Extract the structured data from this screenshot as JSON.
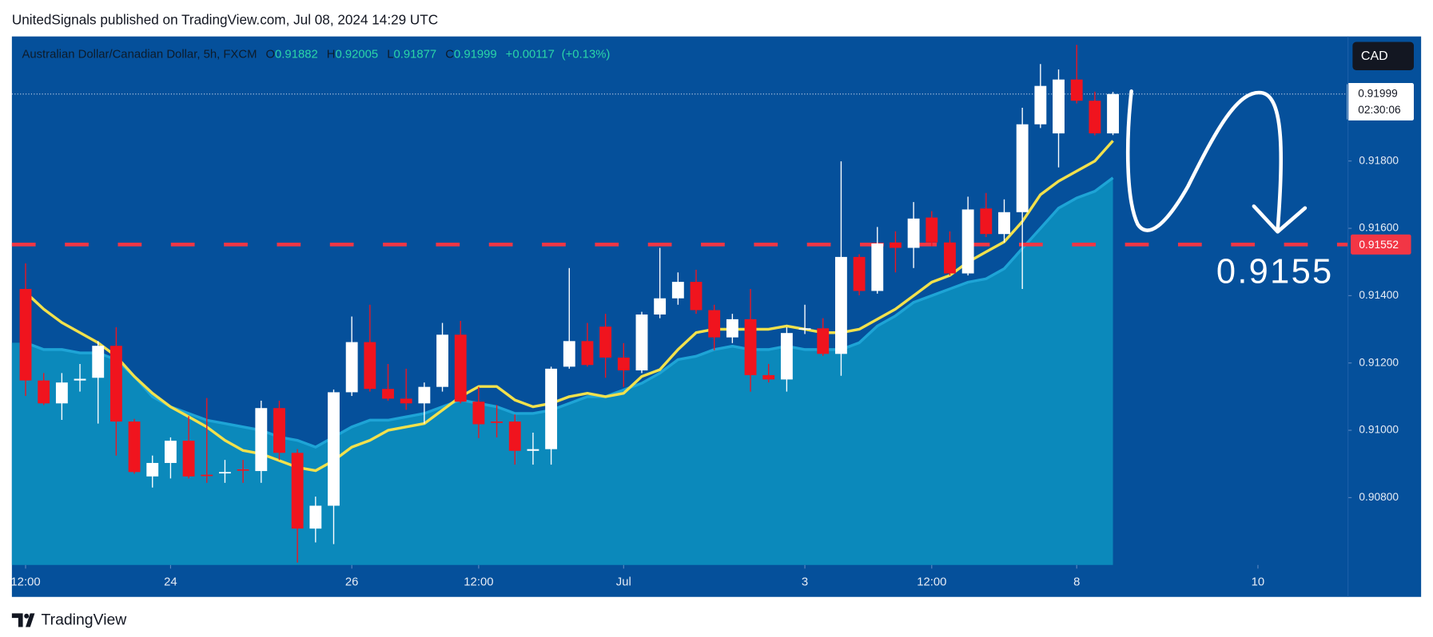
{
  "header": "UnitedSignals published on TradingView.com, Jul 08, 2024 14:29 UTC",
  "footer": "TradingView",
  "currency_button": "CAD",
  "chart_data": {
    "type": "candlestick",
    "title": "Australian Dollar/Canadian Dollar, 5h, FXCM",
    "legend_labels": {
      "open": "O",
      "high": "H",
      "low": "L",
      "close": "C"
    },
    "change": "+0.00117",
    "change_pct": "(+0.13%)",
    "countdown": "02:30:06",
    "annotation": "0.9155",
    "level": 0.91552,
    "level_color": "#f23645",
    "up_color": "#ffffff",
    "down_color": "#f0141e",
    "open": [
      0.9142,
      0.91148,
      0.9108,
      0.91148,
      0.91156,
      0.91251,
      0.91026,
      0.90863,
      0.90903,
      0.90969,
      0.90868,
      0.90874,
      0.90884,
      0.90879,
      0.91066,
      0.90933,
      0.90708,
      0.90776,
      0.91113,
      0.91262,
      0.91123,
      0.91094,
      0.9108,
      0.91129,
      0.91284,
      0.91085,
      0.91026,
      0.91026,
      0.90939,
      0.90944,
      0.91189,
      0.91265,
      0.91308,
      0.91216,
      0.91178,
      0.91344,
      0.91392,
      0.91441,
      0.91357,
      0.91276,
      0.9133,
      0.91164,
      0.91151,
      0.913,
      0.91303,
      0.91227,
      0.91515,
      0.91414,
      0.91558,
      0.91542,
      0.91632,
      0.91558,
      0.91466,
      0.91659,
      0.91583,
      0.91648,
      0.91909,
      0.91882,
      0.92042,
      0.91979,
      0.91882
    ],
    "high": [
      0.91496,
      0.9117,
      0.9117,
      0.91197,
      0.91265,
      0.91306,
      0.91034,
      0.90925,
      0.90979,
      0.91042,
      0.91096,
      0.90912,
      0.90912,
      0.91088,
      0.91088,
      0.90944,
      0.90803,
      0.91121,
      0.91338,
      0.91373,
      0.91197,
      0.91183,
      0.91142,
      0.91319,
      0.91325,
      0.91129,
      0.91075,
      0.91047,
      0.90993,
      0.91189,
      0.91482,
      0.91319,
      0.91346,
      0.91259,
      0.91352,
      0.91542,
      0.91469,
      0.91477,
      0.91373,
      0.91346,
      0.9142,
      0.91197,
      0.91306,
      0.91373,
      0.91333,
      0.91799,
      0.91523,
      0.91604,
      0.91591,
      0.91678,
      0.91651,
      0.91591,
      0.91694,
      0.91705,
      0.91686,
      0.91958,
      0.92088,
      0.92072,
      0.92145,
      0.92006,
      0.92005
    ],
    "low": [
      0.91102,
      0.91075,
      0.91031,
      0.91115,
      0.9102,
      0.90925,
      0.90871,
      0.9083,
      0.90857,
      0.90857,
      0.90844,
      0.90844,
      0.90844,
      0.90844,
      0.90912,
      0.90607,
      0.90667,
      0.90662,
      0.91102,
      0.91115,
      0.91088,
      0.91061,
      0.9102,
      0.91115,
      0.9108,
      0.90977,
      0.90979,
      0.90898,
      0.90898,
      0.90898,
      0.91183,
      0.91189,
      0.91156,
      0.91129,
      0.9117,
      0.91333,
      0.91373,
      0.91346,
      0.91238,
      0.91259,
      0.91115,
      0.91142,
      0.91115,
      0.91286,
      0.91221,
      0.91162,
      0.91401,
      0.91406,
      0.91469,
      0.91482,
      0.91547,
      0.9146,
      0.9146,
      0.91574,
      0.91558,
      0.9142,
      0.91898,
      0.91781,
      0.91971,
      0.91876,
      0.91877
    ],
    "close": [
      0.91148,
      0.9108,
      0.91142,
      0.91153,
      0.91251,
      0.91026,
      0.90876,
      0.90903,
      0.90969,
      0.90863,
      0.90866,
      0.90876,
      0.90882,
      0.91066,
      0.90933,
      0.90708,
      0.90776,
      0.91113,
      0.91262,
      0.91123,
      0.91094,
      0.9108,
      0.91129,
      0.91284,
      0.91085,
      0.91018,
      0.91024,
      0.90939,
      0.90944,
      0.91183,
      0.91265,
      0.91194,
      0.91216,
      0.91178,
      0.91344,
      0.91392,
      0.91441,
      0.91357,
      0.91276,
      0.9133,
      0.91164,
      0.91151,
      0.91289,
      0.91303,
      0.91227,
      0.91515,
      0.91414,
      0.91555,
      0.91542,
      0.91629,
      0.91558,
      0.91466,
      0.91656,
      0.91583,
      0.91648,
      0.91909,
      0.92023,
      0.92042,
      0.91979,
      0.91882,
      0.91999
    ],
    "overlays": [
      {
        "color": "#0b89bb",
        "fill": true,
        "values": [
          0.9126,
          0.9124,
          0.9124,
          0.9123,
          0.9123,
          0.9121,
          0.9116,
          0.911,
          0.9107,
          0.9105,
          0.9103,
          0.9102,
          0.9101,
          0.91,
          0.9098,
          0.9097,
          0.9095,
          0.9098,
          0.9101,
          0.9103,
          0.9103,
          0.9104,
          0.9105,
          0.9107,
          0.9109,
          0.9108,
          0.9107,
          0.9105,
          0.9105,
          0.9106,
          0.9108,
          0.911,
          0.911,
          0.9112,
          0.9114,
          0.9117,
          0.9121,
          0.9122,
          0.9124,
          0.9125,
          0.9124,
          0.9124,
          0.9125,
          0.9124,
          0.9124,
          0.9124,
          0.9126,
          0.9131,
          0.9134,
          0.9138,
          0.914,
          0.9142,
          0.9144,
          0.9145,
          0.9148,
          0.9154,
          0.916,
          0.9166,
          0.9169,
          0.9171,
          0.9175
        ]
      },
      {
        "color": "#f2e14c",
        "fill": false,
        "values": [
          0.9141,
          0.9136,
          0.9132,
          0.9129,
          0.9126,
          0.9122,
          0.9116,
          0.9111,
          0.9107,
          0.9104,
          0.9101,
          0.9097,
          0.9094,
          0.9093,
          0.9091,
          0.9089,
          0.9088,
          0.9091,
          0.9095,
          0.9097,
          0.91,
          0.9101,
          0.9102,
          0.9106,
          0.911,
          0.9113,
          0.9113,
          0.9109,
          0.9107,
          0.9108,
          0.911,
          0.9111,
          0.911,
          0.9111,
          0.9116,
          0.9118,
          0.9124,
          0.9129,
          0.913,
          0.913,
          0.913,
          0.913,
          0.9131,
          0.913,
          0.9129,
          0.9129,
          0.913,
          0.9133,
          0.9136,
          0.914,
          0.9144,
          0.9146,
          0.915,
          0.9153,
          0.9156,
          0.9162,
          0.917,
          0.9174,
          0.9177,
          0.918,
          0.9186
        ]
      }
    ],
    "ylim": [
      0.906,
      0.9217
    ],
    "yticks": [
      {
        "value": 0.908,
        "label": "0.90800"
      },
      {
        "value": 0.91,
        "label": "0.91000"
      },
      {
        "value": 0.912,
        "label": "0.91200"
      },
      {
        "value": 0.914,
        "label": "0.91400"
      },
      {
        "value": 0.916,
        "label": "0.91600"
      },
      {
        "value": 0.918,
        "label": "0.91800"
      }
    ],
    "xticks": [
      {
        "value": 0,
        "label": "12:00"
      },
      {
        "value": 8,
        "label": "24"
      },
      {
        "value": 18,
        "label": "26"
      },
      {
        "value": 25,
        "label": "12:00"
      },
      {
        "value": 33,
        "label": "Jul"
      },
      {
        "value": 43,
        "label": "3"
      },
      {
        "value": 50,
        "label": "12:00"
      },
      {
        "value": 58,
        "label": "8"
      },
      {
        "value": 68,
        "label": "10"
      }
    ]
  }
}
